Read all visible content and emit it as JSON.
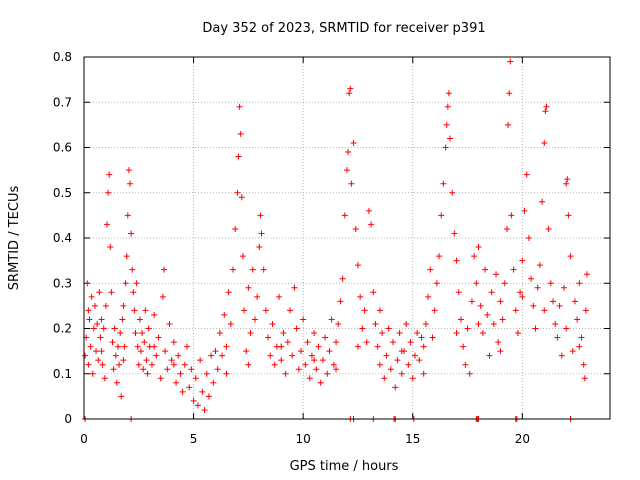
{
  "chart_data": {
    "type": "scatter",
    "title": "Day 352 of 2023, SRMTID for receiver p391",
    "xlabel": "GPS time / hours",
    "ylabel": "SRMTID / TECUs",
    "xlim": [
      0,
      24
    ],
    "ylim": [
      0,
      0.8
    ],
    "xticks": [
      0,
      5,
      10,
      15,
      20
    ],
    "yticks": [
      0,
      0.1,
      0.2,
      0.3,
      0.4,
      0.5,
      0.6,
      0.7,
      0.8
    ],
    "xtick_labels": [
      "0",
      "5",
      "10",
      "15",
      "20"
    ],
    "ytick_labels": [
      "0",
      "0.1",
      "0.2",
      "0.3",
      "0.4",
      "0.5",
      "0.6",
      "0.7",
      "0.8"
    ],
    "grid": true,
    "marker": "+",
    "marker_color": "#ff0000",
    "series": [
      {
        "name": "SRMTID",
        "points": [
          [
            0.05,
            0.14
          ],
          [
            0.1,
            0.18
          ],
          [
            0.15,
            0.3
          ],
          [
            0.2,
            0.12
          ],
          [
            0.25,
            0.22
          ],
          [
            0.3,
            0.16
          ],
          [
            0.35,
            0.27
          ],
          [
            0.4,
            0.1
          ],
          [
            0.45,
            0.2
          ],
          [
            0.5,
            0.25
          ],
          [
            0.55,
            0.15
          ],
          [
            0.6,
            0.21
          ],
          [
            0.65,
            0.13
          ],
          [
            0.7,
            0.28
          ],
          [
            0.75,
            0.18
          ],
          [
            0.8,
            0.22
          ],
          [
            0.85,
            0.12
          ],
          [
            0.9,
            0.2
          ],
          [
            0.95,
            0.09
          ],
          [
            1.0,
            0.25
          ],
          [
            1.05,
            0.43
          ],
          [
            1.1,
            0.5
          ],
          [
            1.15,
            0.54
          ],
          [
            1.2,
            0.38
          ],
          [
            1.25,
            0.28
          ],
          [
            1.3,
            0.17
          ],
          [
            1.35,
            0.11
          ],
          [
            1.4,
            0.2
          ],
          [
            1.45,
            0.14
          ],
          [
            1.5,
            0.08
          ],
          [
            1.55,
            0.16
          ],
          [
            1.6,
            0.12
          ],
          [
            1.65,
            0.19
          ],
          [
            1.7,
            0.05
          ],
          [
            1.75,
            0.22
          ],
          [
            1.8,
            0.13
          ],
          [
            1.85,
            0.16
          ],
          [
            1.9,
            0.3
          ],
          [
            1.95,
            0.36
          ],
          [
            2.0,
            0.45
          ],
          [
            2.05,
            0.55
          ],
          [
            2.1,
            0.52
          ],
          [
            2.15,
            0.41
          ],
          [
            2.2,
            0.33
          ],
          [
            2.25,
            0.28
          ],
          [
            2.3,
            0.24
          ],
          [
            2.35,
            0.19
          ],
          [
            2.4,
            0.3
          ],
          [
            2.45,
            0.16
          ],
          [
            2.5,
            0.12
          ],
          [
            2.55,
            0.22
          ],
          [
            2.6,
            0.15
          ],
          [
            2.65,
            0.19
          ],
          [
            2.7,
            0.11
          ],
          [
            2.75,
            0.17
          ],
          [
            2.8,
            0.24
          ],
          [
            2.85,
            0.13
          ],
          [
            2.9,
            0.1
          ],
          [
            2.95,
            0.2
          ],
          [
            3.0,
            0.16
          ],
          [
            3.1,
            0.12
          ],
          [
            3.2,
            0.23
          ],
          [
            3.3,
            0.14
          ],
          [
            3.4,
            0.18
          ],
          [
            3.5,
            0.09
          ],
          [
            3.6,
            0.27
          ],
          [
            3.65,
            0.33
          ],
          [
            3.7,
            0.15
          ],
          [
            3.8,
            0.11
          ],
          [
            3.9,
            0.21
          ],
          [
            4.0,
            0.13
          ],
          [
            4.1,
            0.17
          ],
          [
            4.2,
            0.08
          ],
          [
            4.3,
            0.14
          ],
          [
            4.4,
            0.1
          ],
          [
            4.5,
            0.06
          ],
          [
            4.6,
            0.12
          ],
          [
            4.7,
            0.16
          ],
          [
            4.8,
            0.07
          ],
          [
            4.9,
            0.11
          ],
          [
            5.0,
            0.04
          ],
          [
            5.1,
            0.09
          ],
          [
            5.2,
            0.03
          ],
          [
            5.3,
            0.13
          ],
          [
            5.4,
            0.06
          ],
          [
            5.5,
            0.02
          ],
          [
            5.6,
            0.1
          ],
          [
            5.7,
            0.05
          ],
          [
            5.8,
            0.14
          ],
          [
            5.9,
            0.08
          ],
          [
            6.0,
            0.15
          ],
          [
            6.1,
            0.11
          ],
          [
            6.2,
            0.19
          ],
          [
            6.3,
            0.14
          ],
          [
            6.4,
            0.23
          ],
          [
            6.5,
            0.16
          ],
          [
            6.6,
            0.28
          ],
          [
            6.7,
            0.21
          ],
          [
            6.8,
            0.33
          ],
          [
            6.9,
            0.42
          ],
          [
            7.0,
            0.5
          ],
          [
            7.05,
            0.58
          ],
          [
            7.1,
            0.69
          ],
          [
            7.15,
            0.63
          ],
          [
            7.2,
            0.49
          ],
          [
            7.25,
            0.36
          ],
          [
            7.3,
            0.24
          ],
          [
            7.4,
            0.15
          ],
          [
            7.5,
            0.29
          ],
          [
            7.6,
            0.19
          ],
          [
            7.7,
            0.33
          ],
          [
            7.8,
            0.22
          ],
          [
            7.9,
            0.27
          ],
          [
            8.0,
            0.38
          ],
          [
            8.05,
            0.45
          ],
          [
            8.1,
            0.41
          ],
          [
            8.2,
            0.33
          ],
          [
            8.3,
            0.24
          ],
          [
            8.4,
            0.18
          ],
          [
            8.5,
            0.14
          ],
          [
            8.6,
            0.21
          ],
          [
            8.7,
            0.12
          ],
          [
            8.8,
            0.16
          ],
          [
            8.9,
            0.27
          ],
          [
            9.0,
            0.13
          ],
          [
            9.1,
            0.19
          ],
          [
            9.2,
            0.1
          ],
          [
            9.3,
            0.17
          ],
          [
            9.4,
            0.24
          ],
          [
            9.5,
            0.14
          ],
          [
            9.6,
            0.29
          ],
          [
            9.7,
            0.2
          ],
          [
            9.8,
            0.11
          ],
          [
            9.9,
            0.15
          ],
          [
            10.0,
            0.22
          ],
          [
            10.1,
            0.12
          ],
          [
            10.2,
            0.17
          ],
          [
            10.3,
            0.09
          ],
          [
            10.4,
            0.14
          ],
          [
            10.5,
            0.19
          ],
          [
            10.6,
            0.11
          ],
          [
            10.7,
            0.16
          ],
          [
            10.8,
            0.08
          ],
          [
            10.9,
            0.13
          ],
          [
            11.0,
            0.18
          ],
          [
            11.1,
            0.1
          ],
          [
            11.2,
            0.15
          ],
          [
            11.3,
            0.22
          ],
          [
            11.4,
            0.12
          ],
          [
            11.5,
            0.17
          ],
          [
            11.6,
            0.21
          ],
          [
            11.7,
            0.26
          ],
          [
            11.8,
            0.31
          ],
          [
            11.9,
            0.45
          ],
          [
            12.0,
            0.55
          ],
          [
            12.05,
            0.59
          ],
          [
            12.1,
            0.72
          ],
          [
            12.15,
            0.73
          ],
          [
            12.2,
            0.52
          ],
          [
            12.3,
            0.61
          ],
          [
            12.4,
            0.42
          ],
          [
            12.5,
            0.34
          ],
          [
            12.6,
            0.27
          ],
          [
            12.7,
            0.2
          ],
          [
            12.8,
            0.24
          ],
          [
            12.9,
            0.17
          ],
          [
            13.0,
            0.46
          ],
          [
            13.1,
            0.43
          ],
          [
            13.2,
            0.28
          ],
          [
            13.3,
            0.21
          ],
          [
            13.4,
            0.16
          ],
          [
            13.5,
            0.12
          ],
          [
            13.6,
            0.19
          ],
          [
            13.7,
            0.09
          ],
          [
            13.8,
            0.14
          ],
          [
            13.9,
            0.2
          ],
          [
            14.0,
            0.11
          ],
          [
            14.1,
            0.17
          ],
          [
            14.2,
            0.07
          ],
          [
            14.3,
            0.13
          ],
          [
            14.4,
            0.19
          ],
          [
            14.5,
            0.1
          ],
          [
            14.6,
            0.15
          ],
          [
            14.7,
            0.21
          ],
          [
            14.8,
            0.12
          ],
          [
            14.9,
            0.17
          ],
          [
            15.0,
            0.09
          ],
          [
            15.1,
            0.14
          ],
          [
            15.2,
            0.19
          ],
          [
            15.3,
            0.13
          ],
          [
            15.4,
            0.18
          ],
          [
            15.5,
            0.1
          ],
          [
            15.6,
            0.21
          ],
          [
            15.7,
            0.27
          ],
          [
            15.8,
            0.33
          ],
          [
            15.9,
            0.18
          ],
          [
            16.0,
            0.24
          ],
          [
            16.1,
            0.3
          ],
          [
            16.2,
            0.36
          ],
          [
            16.3,
            0.45
          ],
          [
            16.4,
            0.52
          ],
          [
            16.5,
            0.6
          ],
          [
            16.55,
            0.65
          ],
          [
            16.6,
            0.69
          ],
          [
            16.65,
            0.72
          ],
          [
            16.7,
            0.62
          ],
          [
            16.8,
            0.5
          ],
          [
            16.9,
            0.41
          ],
          [
            17.0,
            0.35
          ],
          [
            17.1,
            0.28
          ],
          [
            17.2,
            0.22
          ],
          [
            17.3,
            0.16
          ],
          [
            17.4,
            0.12
          ],
          [
            17.5,
            0.2
          ],
          [
            17.6,
            0.1
          ],
          [
            17.7,
            0.26
          ],
          [
            17.8,
            0.36
          ],
          [
            17.9,
            0.3
          ],
          [
            18.0,
            0.38
          ],
          [
            18.1,
            0.25
          ],
          [
            18.2,
            0.19
          ],
          [
            18.3,
            0.33
          ],
          [
            18.4,
            0.23
          ],
          [
            18.5,
            0.14
          ],
          [
            18.6,
            0.28
          ],
          [
            18.7,
            0.21
          ],
          [
            18.8,
            0.32
          ],
          [
            18.9,
            0.17
          ],
          [
            19.0,
            0.26
          ],
          [
            19.1,
            0.22
          ],
          [
            19.2,
            0.3
          ],
          [
            19.3,
            0.42
          ],
          [
            19.35,
            0.65
          ],
          [
            19.4,
            0.72
          ],
          [
            19.45,
            0.79
          ],
          [
            19.5,
            0.45
          ],
          [
            19.6,
            0.33
          ],
          [
            19.7,
            0.24
          ],
          [
            19.8,
            0.19
          ],
          [
            19.9,
            0.28
          ],
          [
            20.0,
            0.35
          ],
          [
            20.1,
            0.46
          ],
          [
            20.2,
            0.54
          ],
          [
            20.3,
            0.4
          ],
          [
            20.4,
            0.31
          ],
          [
            20.5,
            0.25
          ],
          [
            20.6,
            0.2
          ],
          [
            20.7,
            0.29
          ],
          [
            20.8,
            0.34
          ],
          [
            20.9,
            0.48
          ],
          [
            21.0,
            0.61
          ],
          [
            21.05,
            0.68
          ],
          [
            21.1,
            0.69
          ],
          [
            21.2,
            0.42
          ],
          [
            21.3,
            0.3
          ],
          [
            21.4,
            0.26
          ],
          [
            21.5,
            0.21
          ],
          [
            21.6,
            0.18
          ],
          [
            21.7,
            0.25
          ],
          [
            21.8,
            0.14
          ],
          [
            21.9,
            0.29
          ],
          [
            22.0,
            0.52
          ],
          [
            22.05,
            0.53
          ],
          [
            22.1,
            0.45
          ],
          [
            22.2,
            0.36
          ],
          [
            22.3,
            0.15
          ],
          [
            22.4,
            0.26
          ],
          [
            22.5,
            0.22
          ],
          [
            22.6,
            0.3
          ],
          [
            22.7,
            0.18
          ],
          [
            22.8,
            0.12
          ],
          [
            22.85,
            0.09
          ],
          [
            22.9,
            0.24
          ],
          [
            22.95,
            0.32
          ],
          [
            0.2,
            0.24
          ],
          [
            0.8,
            0.15
          ],
          [
            1.8,
            0.25
          ],
          [
            3.2,
            0.16
          ],
          [
            4.1,
            0.12
          ],
          [
            6.5,
            0.1
          ],
          [
            7.5,
            0.12
          ],
          [
            9.0,
            0.16
          ],
          [
            10.5,
            0.13
          ],
          [
            11.5,
            0.11
          ],
          [
            12.5,
            0.16
          ],
          [
            13.5,
            0.24
          ],
          [
            14.5,
            0.15
          ],
          [
            15.5,
            0.16
          ],
          [
            17.0,
            0.19
          ],
          [
            18.0,
            0.21
          ],
          [
            19.0,
            0.15
          ],
          [
            20.0,
            0.27
          ],
          [
            21.0,
            0.24
          ],
          [
            22.0,
            0.2
          ],
          [
            22.6,
            0.16
          ],
          [
            0.05,
            0.0
          ],
          [
            2.15,
            0.0
          ],
          [
            12.15,
            0.0
          ],
          [
            12.3,
            0.0
          ],
          [
            13.2,
            0.0
          ],
          [
            14.15,
            0.0
          ],
          [
            14.2,
            0.0
          ],
          [
            15.05,
            0.0
          ],
          [
            17.9,
            0.0
          ],
          [
            17.95,
            0.0
          ],
          [
            18.0,
            0.0
          ],
          [
            19.7,
            0.0
          ],
          [
            19.75,
            0.0
          ],
          [
            22.2,
            0.0
          ]
        ]
      }
    ]
  }
}
